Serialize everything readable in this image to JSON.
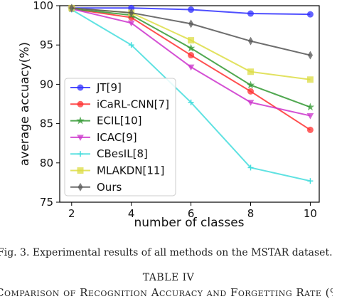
{
  "chart_data": {
    "type": "line",
    "xlabel": "number of classes",
    "ylabel": "average accuacy(%)",
    "x": [
      2,
      4,
      6,
      8,
      10
    ],
    "xticks": [
      "2",
      "4",
      "6",
      "8",
      "10"
    ],
    "yticks": [
      "75",
      "80",
      "85",
      "90",
      "95",
      "100"
    ],
    "xlim": [
      1.6,
      10.3
    ],
    "ylim": [
      75,
      100
    ],
    "grid": false,
    "legend_position": "bottom-left",
    "series": [
      {
        "name": "JT[9]",
        "color": "#3030ff",
        "marker": "circle",
        "values": [
          99.7,
          99.7,
          99.5,
          99.0,
          98.9
        ]
      },
      {
        "name": "iCaRL-CNN[7]",
        "color": "#ff3030",
        "marker": "circle",
        "values": [
          99.6,
          98.5,
          93.7,
          89.1,
          84.2
        ]
      },
      {
        "name": "ECIL[10]",
        "color": "#339933",
        "marker": "star",
        "values": [
          99.6,
          98.8,
          94.6,
          89.9,
          87.1
        ]
      },
      {
        "name": "ICAC[9]",
        "color": "#cc33cc",
        "marker": "triangle",
        "values": [
          99.6,
          97.8,
          92.2,
          87.7,
          86.0
        ]
      },
      {
        "name": "CBesIL[8]",
        "color": "#44dddd",
        "marker": "plus",
        "values": [
          99.5,
          95.0,
          87.7,
          79.4,
          77.7
        ]
      },
      {
        "name": "MLAKDN[11]",
        "color": "#dddd44",
        "marker": "square",
        "values": [
          99.7,
          99.1,
          95.6,
          91.6,
          90.6
        ]
      },
      {
        "name": "Ours",
        "color": "#555555",
        "marker": "diamond",
        "values": [
          99.7,
          99.1,
          97.7,
          95.5,
          93.7
        ]
      }
    ]
  },
  "caption": {
    "figure": "Fig. 3.   Experimental results of all methods on the MSTAR dataset.",
    "table_title": "TABLE IV",
    "table_caption": "Comparison of Recognition Accuracy and Forgetting Rate (%"
  }
}
